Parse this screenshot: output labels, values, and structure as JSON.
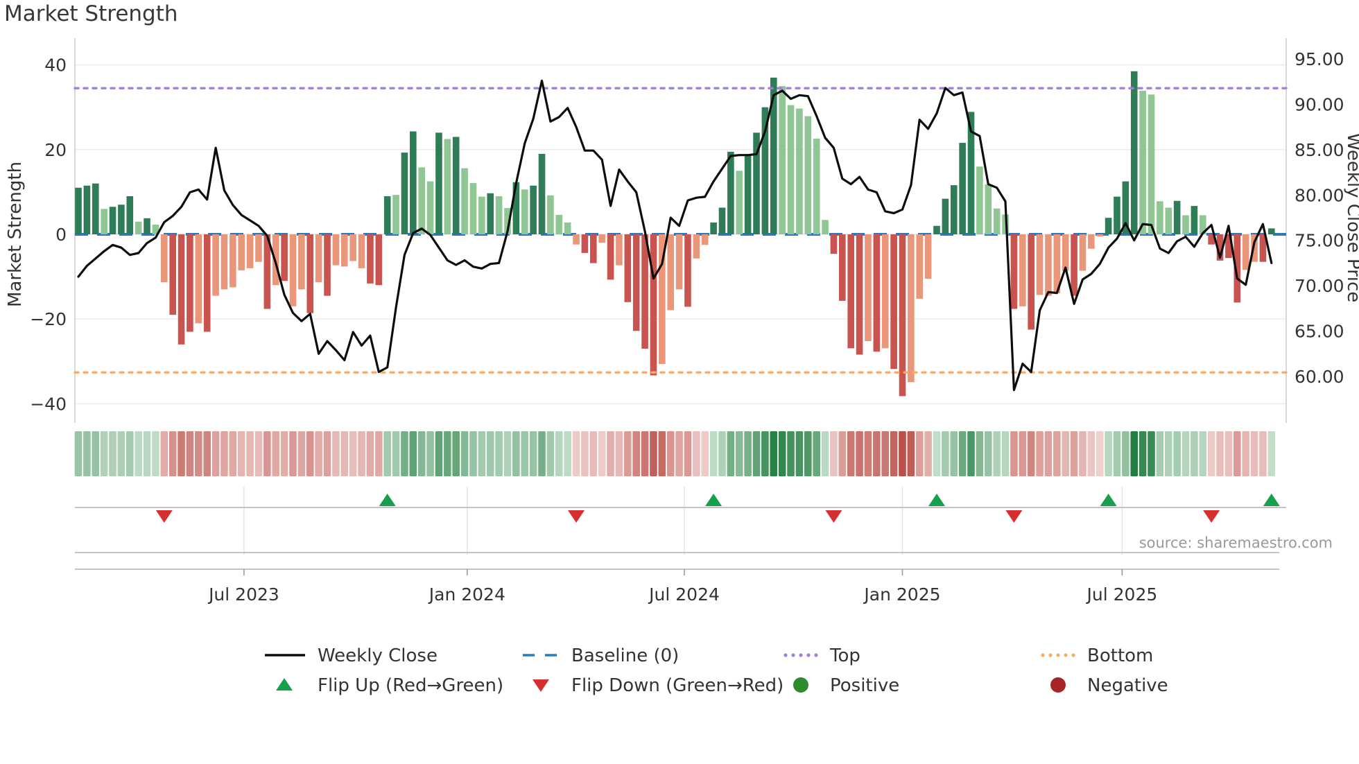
{
  "title": "Market Strength",
  "source": "source: sharemaestro.com",
  "left_axis": {
    "label": "Market Strength",
    "ticks": [
      "40",
      "20",
      "0",
      "−20",
      "−40"
    ],
    "tick_values": [
      40,
      20,
      0,
      -20,
      -40
    ]
  },
  "right_axis": {
    "label": "Weekly Close Price",
    "ticks": [
      "95.00",
      "90.00",
      "85.00",
      "80.00",
      "75.00",
      "70.00",
      "65.00",
      "60.00"
    ],
    "tick_values": [
      95,
      90,
      85,
      80,
      75,
      70,
      65,
      60
    ]
  },
  "x_axis": {
    "tick_labels": [
      "Jul 2023",
      "Jan 2024",
      "Jul 2024",
      "Jan 2025",
      "Jul 2025"
    ],
    "tick_week_index": [
      19.3,
      45.3,
      70.6,
      96.0,
      121.6
    ]
  },
  "legend": {
    "weekly_close": "Weekly Close",
    "baseline": "Baseline (0)",
    "top": "Top",
    "bottom": "Bottom",
    "flip_up": "Flip Up (Red→Green)",
    "flip_down": "Flip Down (Green→Red)",
    "positive": "Positive",
    "negative": "Negative"
  },
  "colors": {
    "bar_green_dark": "#2e7d56",
    "bar_green_light": "#8fc693",
    "bar_red_dark": "#c9534f",
    "bar_red_salmon": "#e9967a",
    "price_line": "#0d0d0d",
    "baseline": "#2b7bba",
    "top_line": "#a47fd6",
    "bottom_line": "#f8ab67",
    "flip_up": "#17a04b",
    "flip_down": "#d62f2f",
    "positive_dot": "#2d8a2d",
    "negative_dot": "#a82525",
    "grid": "#e9e9ee",
    "spine": "#cccccc",
    "text": "#333333",
    "muted": "#999999",
    "heat_green_dark": "#1b7a3b",
    "heat_green_light": "#e8f3e8",
    "heat_red_dark": "#b94a44",
    "heat_red_light": "#faeae7"
  },
  "chart_data": {
    "type": "combo-bar-line-heatmap-markers",
    "n_weeks": 140,
    "ylim_strength": [
      -45,
      46
    ],
    "baseline": 0,
    "top_line": 34.5,
    "bottom_line": -32.6,
    "strength_values": [
      11,
      11.5,
      12,
      6,
      6.5,
      7,
      9,
      3,
      3.8,
      2.3,
      -11.3,
      -19,
      -26,
      -23,
      -21,
      -23,
      -14.5,
      -13,
      -12.5,
      -8.5,
      -8,
      -6.5,
      -17.6,
      -12,
      -11,
      -17,
      -13,
      -18.6,
      -11.3,
      -14.5,
      -7.3,
      -7.6,
      -6.3,
      -8,
      -11.6,
      -12,
      9,
      9.3,
      19.3,
      24.3,
      15.8,
      12.5,
      24,
      22.5,
      23,
      15.6,
      12.1,
      8.9,
      9.7,
      9,
      6.2,
      12.3,
      10.6,
      11.5,
      19,
      9.2,
      4.6,
      2.8,
      -2.4,
      -4.4,
      -6.8,
      -2,
      -10.7,
      -7.3,
      -16,
      -22.8,
      -27,
      -33.3,
      -30.6,
      -17.9,
      -13,
      -17.1,
      -5.7,
      -2.5,
      2.8,
      6.3,
      19.5,
      15,
      18.7,
      24,
      30,
      37,
      35,
      30.5,
      29.7,
      27.9,
      22.6,
      3.4,
      -4.6,
      -15.7,
      -26.9,
      -28.4,
      -25.2,
      -27.7,
      -26.9,
      -31.8,
      -38.2,
      -34.9,
      -15.2,
      -10.5,
      2,
      8.4,
      11.6,
      21.6,
      28.9,
      16,
      11.8,
      6.1,
      4.7,
      -17.6,
      -17,
      -22.5,
      -14.3,
      -14.5,
      -13.9,
      -8.6,
      -14.5,
      -8.6,
      -3.4,
      -0.5,
      3.9,
      8.9,
      12.5,
      38.5,
      33.9,
      33,
      7.8,
      6.3,
      7.9,
      4.5,
      6.7,
      4.5,
      -2.4,
      -6.2,
      -5.6,
      -16.1,
      -8.4,
      -6.5,
      -6.5,
      1.4
    ],
    "bar_shades": "dddldddldlsrrrsrssssssrsrssrsrssssrrdlddlldldllldlldlddlllsrrsrsrrrrsssrssdddlddddllllllrrrrsrsrrsssdddddllllrsrssssrsssddddlllldldlrrrrssrd",
    "weekly_close_price": [
      71.0,
      72.2,
      73.0,
      73.8,
      74.5,
      74.2,
      73.4,
      73.6,
      74.7,
      75.3,
      77.0,
      77.7,
      78.7,
      80.3,
      80.6,
      79.5,
      85.2,
      80.5,
      78.9,
      77.8,
      77.2,
      76.6,
      75.5,
      72.5,
      69.0,
      67.0,
      66.1,
      66.9,
      62.5,
      63.9,
      62.9,
      61.8,
      64.9,
      63.4,
      64.5,
      60.5,
      61.0,
      67.6,
      73.4,
      75.8,
      76.3,
      75.6,
      74.2,
      72.8,
      72.3,
      72.8,
      72.1,
      71.9,
      72.4,
      72.5,
      76.0,
      81.3,
      85.7,
      88.4,
      92.6,
      88.1,
      88.6,
      89.6,
      87.5,
      84.9,
      84.9,
      83.9,
      78.8,
      82.8,
      81.5,
      80.3,
      76.0,
      70.8,
      72.4,
      77.5,
      76.6,
      79.4,
      79.7,
      79.8,
      81.5,
      82.9,
      84.3,
      84.4,
      84.4,
      84.5,
      87.0,
      91.0,
      91.5,
      90.6,
      91.0,
      90.9,
      88.7,
      86.3,
      85.2,
      81.8,
      81.2,
      82.0,
      80.6,
      80.3,
      78.2,
      78.0,
      78.4,
      81.1,
      88.3,
      87.3,
      89.0,
      91.8,
      91.0,
      91.3,
      87.0,
      86.5,
      81.2,
      80.8,
      79.3,
      58.5,
      61.4,
      60.5,
      67.3,
      69.3,
      69.2,
      72.0,
      68.0,
      70.7,
      71.3,
      72.4,
      74.2,
      75.2,
      76.9,
      75.0,
      76.8,
      76.7,
      74.1,
      73.6,
      74.9,
      75.4,
      74.3,
      75.8,
      76.7,
      73.1,
      76.6,
      70.8,
      70.1,
      74.8,
      76.8,
      72.5
    ],
    "flip_up_weeks": [
      36,
      74,
      100,
      120,
      139
    ],
    "flip_down_weeks": [
      10,
      58,
      88,
      109,
      132
    ]
  }
}
